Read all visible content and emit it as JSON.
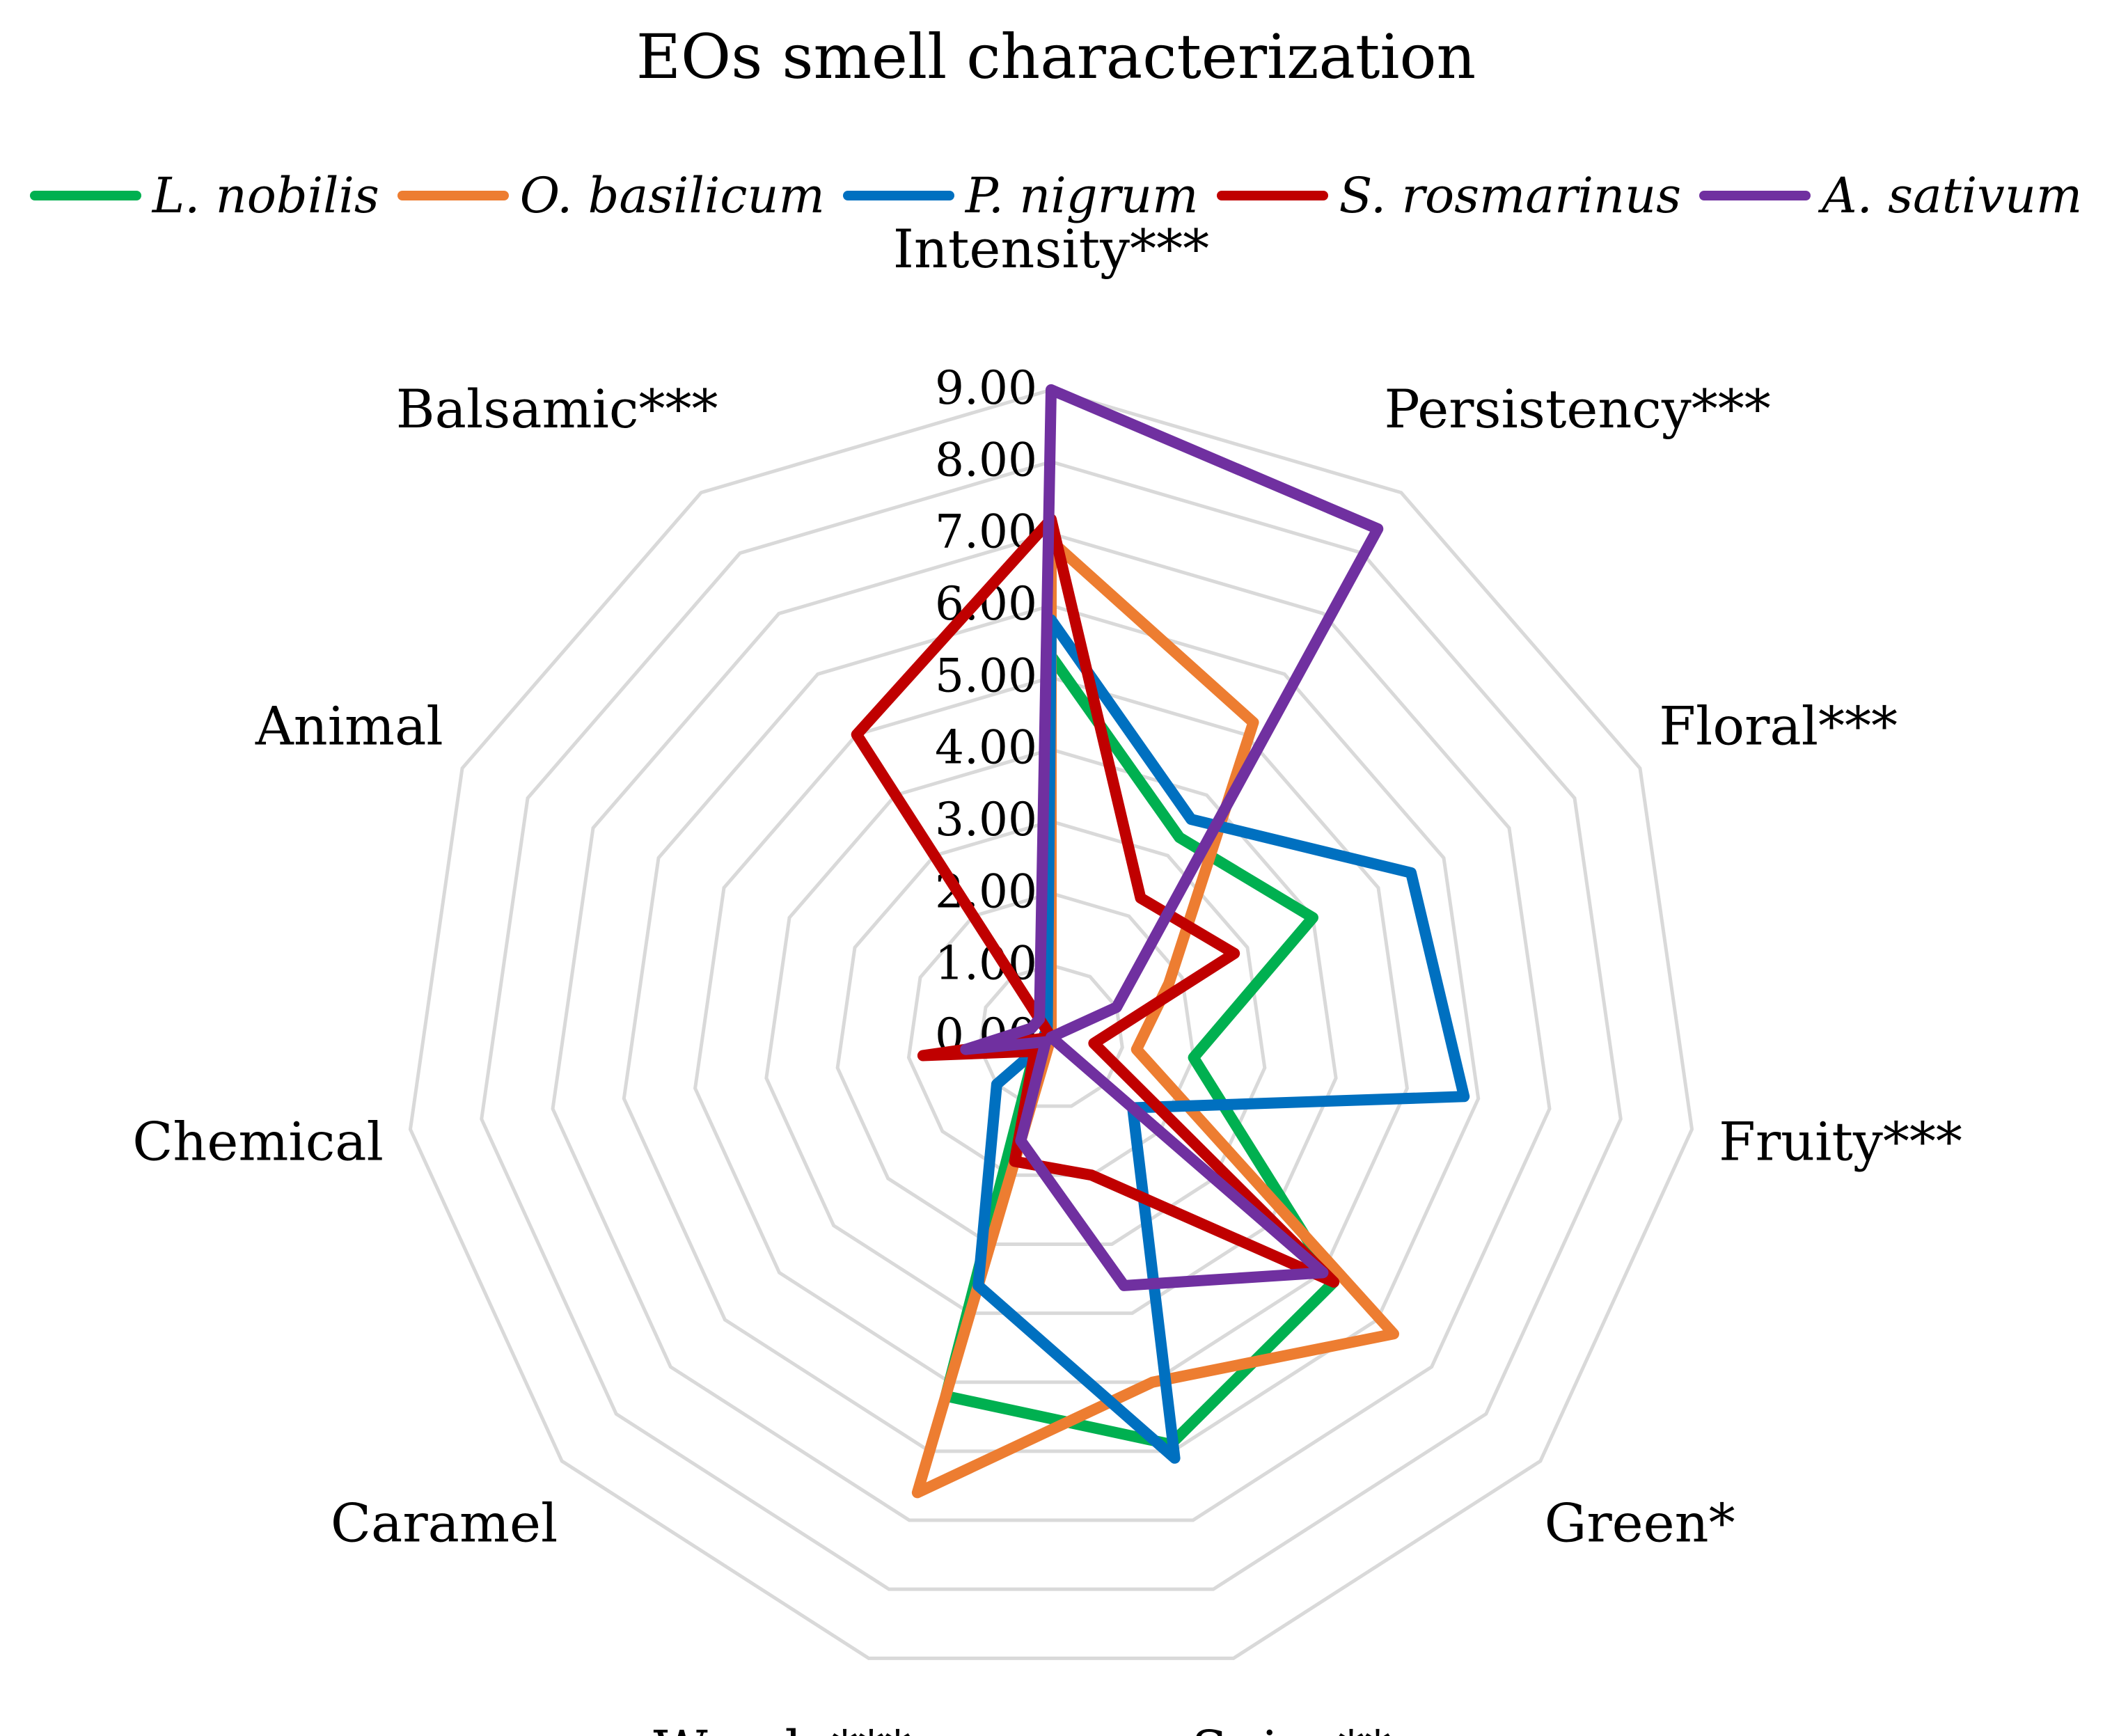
{
  "chart_data": {
    "type": "radar",
    "title": "EOs smell characterization",
    "categories": [
      "Intensity***",
      "Persistency***",
      "Floral***",
      "Fruity***",
      "Green*",
      "Spicy**",
      "Woody***",
      "Caramel",
      "Chemical",
      "Animal",
      "Balsamic***"
    ],
    "rlim": [
      0,
      9
    ],
    "tick_labels": [
      "0.00",
      "1.00",
      "2.00",
      "3.00",
      "4.00",
      "5.00",
      "6.00",
      "7.00",
      "8.00",
      "9.00"
    ],
    "grid": true,
    "legend": "top",
    "series": [
      {
        "name": "L. nobilis",
        "color": "#00b050",
        "values": [
          5.3,
          3.3,
          4.0,
          2.0,
          5.2,
          5.9,
          5.2,
          0.3,
          0.1,
          0.0,
          0.2
        ]
      },
      {
        "name": "O. basilicum",
        "color": "#ed7d31",
        "values": [
          6.9,
          5.2,
          1.8,
          1.2,
          6.3,
          5.0,
          6.6,
          0.0,
          0.1,
          0.0,
          0.0
        ]
      },
      {
        "name": "P. nigrum",
        "color": "#0070c0",
        "values": [
          5.8,
          3.6,
          5.5,
          5.8,
          1.5,
          6.1,
          3.6,
          1.0,
          0.0,
          0.1,
          0.1
        ]
      },
      {
        "name": "S. rosmarinus",
        "color": "#c00000",
        "values": [
          7.2,
          2.3,
          2.8,
          0.6,
          5.2,
          2.0,
          1.8,
          0.3,
          1.8,
          0.0,
          5.0
        ]
      },
      {
        "name": "A. sativum",
        "color": "#7030a0",
        "values": [
          9.0,
          8.4,
          1.0,
          0.0,
          5.0,
          3.6,
          1.5,
          0.1,
          1.2,
          0.3,
          0.3
        ]
      }
    ]
  }
}
